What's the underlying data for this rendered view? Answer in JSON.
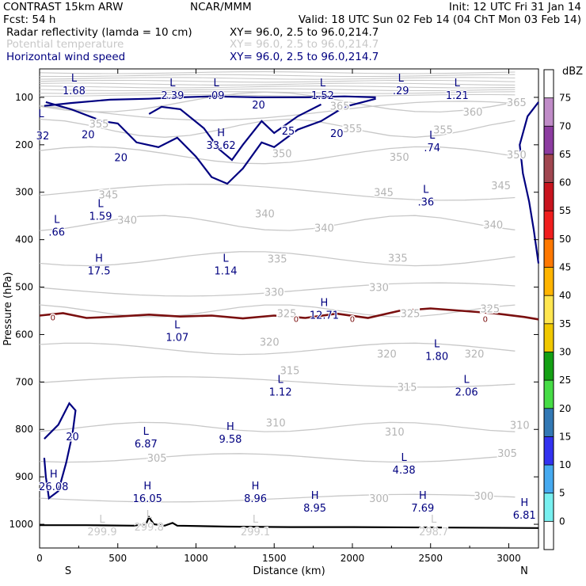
{
  "header": {
    "title": "CONTRAST 15km ARW",
    "forecast": "Fcst:    54 h",
    "source": "NCAR/MMM",
    "init": "Init: 12 UTC Fri 31 Jan 14",
    "valid": "Valid: 18 UTC Sun 02 Feb 14 (04 ChT Mon 03 Feb 14)",
    "fields": [
      {
        "label": "Radar reflectivity (lamda = 10 cm)",
        "coords": "XY=   96.0,  2.5 to   96.0,214.7",
        "color": "#000000"
      },
      {
        "label": "Potential temperature",
        "coords": "XY=   96.0,  2.5 to   96.0,214.7",
        "color": "#c8c8c8"
      },
      {
        "label": "Horizontal wind speed",
        "coords": "XY=   96.0,  2.5 to   96.0,214.7",
        "color": "#000080"
      }
    ]
  },
  "chart_data": {
    "type": "contour cross-section",
    "xlabel": "Distance (km)",
    "ylabel": "Pressure (hPa)",
    "xlim": [
      0,
      3190
    ],
    "ylim": [
      1050,
      40
    ],
    "y_inverted": true,
    "xticks": [
      0,
      500,
      1000,
      1500,
      2000,
      2500,
      3000
    ],
    "yticks": [
      100,
      200,
      300,
      400,
      500,
      600,
      700,
      800,
      900,
      1000
    ],
    "x_end_labels": {
      "left": "S",
      "right": "N"
    },
    "colorbar": {
      "unit": "dBZ",
      "levels": [
        75,
        70,
        65,
        60,
        55,
        50,
        45,
        40,
        35,
        30,
        25,
        20,
        15,
        10,
        5,
        0
      ],
      "colors": [
        "#ffffff",
        "#c08cc8",
        "#8c3ca0",
        "#a04650",
        "#c8141e",
        "#f01e1e",
        "#ff7800",
        "#ffb400",
        "#ffe650",
        "#f0c800",
        "#14a014",
        "#46dc46",
        "#3278b4",
        "#3232f0",
        "#46aaf0",
        "#78f0f0",
        "#ffffff"
      ]
    },
    "theta_labels": [
      {
        "v": "365",
        "x": 1920,
        "p": 118
      },
      {
        "v": "360",
        "x": 2770,
        "p": 130
      },
      {
        "v": "365",
        "x": 3050,
        "p": 110
      },
      {
        "v": "355",
        "x": 2000,
        "p": 165
      },
      {
        "v": "355",
        "x": 2580,
        "p": 168
      },
      {
        "v": "355",
        "x": 380,
        "p": 155
      },
      {
        "v": "350",
        "x": 1550,
        "p": 218
      },
      {
        "v": "350",
        "x": 2300,
        "p": 225
      },
      {
        "v": "350",
        "x": 3050,
        "p": 220
      },
      {
        "v": "345",
        "x": 440,
        "p": 305
      },
      {
        "v": "345",
        "x": 2200,
        "p": 300
      },
      {
        "v": "345",
        "x": 2950,
        "p": 285
      },
      {
        "v": "340",
        "x": 560,
        "p": 358
      },
      {
        "v": "340",
        "x": 1440,
        "p": 345
      },
      {
        "v": "340",
        "x": 1820,
        "p": 375
      },
      {
        "v": "340",
        "x": 2900,
        "p": 368
      },
      {
        "v": "335",
        "x": 1520,
        "p": 440
      },
      {
        "v": "335",
        "x": 2290,
        "p": 438
      },
      {
        "v": "330",
        "x": 1500,
        "p": 510
      },
      {
        "v": "330",
        "x": 2170,
        "p": 500
      },
      {
        "v": "325",
        "x": 1580,
        "p": 555
      },
      {
        "v": "325",
        "x": 2370,
        "p": 555
      },
      {
        "v": "325",
        "x": 2880,
        "p": 545
      },
      {
        "v": "320",
        "x": 1470,
        "p": 615
      },
      {
        "v": "320",
        "x": 2220,
        "p": 640
      },
      {
        "v": "320",
        "x": 2780,
        "p": 640
      },
      {
        "v": "315",
        "x": 1600,
        "p": 675
      },
      {
        "v": "315",
        "x": 2350,
        "p": 710
      },
      {
        "v": "310",
        "x": 1510,
        "p": 785
      },
      {
        "v": "310",
        "x": 2270,
        "p": 805
      },
      {
        "v": "310",
        "x": 3070,
        "p": 790
      },
      {
        "v": "305",
        "x": 750,
        "p": 860
      },
      {
        "v": "305",
        "x": 2990,
        "p": 850
      },
      {
        "v": "300",
        "x": 2170,
        "p": 945
      },
      {
        "v": "300",
        "x": 2840,
        "p": 940
      }
    ],
    "wind_labels": [
      {
        "v": "20",
        "x": 310,
        "p": 178
      },
      {
        "v": "20",
        "x": 520,
        "p": 226
      },
      {
        "v": "20",
        "x": 1400,
        "p": 115
      },
      {
        "v": "25",
        "x": 1590,
        "p": 170
      },
      {
        "v": "20",
        "x": 1900,
        "p": 175
      },
      {
        "v": "20",
        "x": 210,
        "p": 815
      },
      {
        "v": "0",
        "x": 85,
        "p": 562
      },
      {
        "v": "0",
        "x": 1640,
        "p": 565
      },
      {
        "v": "0",
        "x": 2000,
        "p": 565
      },
      {
        "v": "0",
        "x": 2850,
        "p": 565
      }
    ],
    "extrema": [
      {
        "t": "L",
        "v": "1.68",
        "x": 220,
        "p": 80,
        "color": "#000080"
      },
      {
        "t": "L",
        "v": "2.39",
        "x": 850,
        "p": 90,
        "color": "#000080"
      },
      {
        "t": "L",
        "v": ".09",
        "x": 1130,
        "p": 90,
        "color": "#000080"
      },
      {
        "t": "L",
        "v": "1.52",
        "x": 1810,
        "p": 90,
        "color": "#000080"
      },
      {
        "t": "L",
        "v": ".29",
        "x": 2310,
        "p": 80,
        "color": "#000080"
      },
      {
        "t": "L",
        "v": "1.21",
        "x": 2670,
        "p": 90,
        "color": "#000080"
      },
      {
        "t": "L",
        "v": "",
        "x": 10,
        "p": 155,
        "color": "#000080"
      },
      {
        "t": "",
        "v": "32",
        "x": 20,
        "p": 175,
        "color": "#000080"
      },
      {
        "t": "H",
        "v": "33.62",
        "x": 1160,
        "p": 195,
        "color": "#000080"
      },
      {
        "t": "L",
        "v": ".74",
        "x": 2510,
        "p": 200,
        "color": "#000080"
      },
      {
        "t": "L",
        "v": ".36",
        "x": 2470,
        "p": 315,
        "color": "#000080"
      },
      {
        "t": "L",
        "v": "1.59",
        "x": 390,
        "p": 345,
        "color": "#000080"
      },
      {
        "t": "L",
        "v": ".66",
        "x": 110,
        "p": 378,
        "color": "#000080"
      },
      {
        "t": "H",
        "v": "17.5",
        "x": 380,
        "p": 460,
        "color": "#000080"
      },
      {
        "t": "L",
        "v": "1.14",
        "x": 1190,
        "p": 460,
        "color": "#000080"
      },
      {
        "t": "H",
        "v": "12.71",
        "x": 1820,
        "p": 553,
        "color": "#000080"
      },
      {
        "t": "L",
        "v": "1.07",
        "x": 880,
        "p": 600,
        "color": "#000080"
      },
      {
        "t": "L",
        "v": "1.80",
        "x": 2540,
        "p": 640,
        "color": "#000080"
      },
      {
        "t": "L",
        "v": "1.12",
        "x": 1540,
        "p": 715,
        "color": "#000080"
      },
      {
        "t": "L",
        "v": "2.06",
        "x": 2730,
        "p": 715,
        "color": "#000080"
      },
      {
        "t": "L",
        "v": "6.87",
        "x": 680,
        "p": 825,
        "color": "#000080"
      },
      {
        "t": "H",
        "v": "9.58",
        "x": 1220,
        "p": 815,
        "color": "#000080"
      },
      {
        "t": "L",
        "v": "4.38",
        "x": 2330,
        "p": 880,
        "color": "#000080"
      },
      {
        "t": "H",
        "v": "26.08",
        "x": 90,
        "p": 915,
        "color": "#000080"
      },
      {
        "t": "H",
        "v": "16.05",
        "x": 690,
        "p": 940,
        "color": "#000080"
      },
      {
        "t": "H",
        "v": "8.96",
        "x": 1380,
        "p": 940,
        "color": "#000080"
      },
      {
        "t": "H",
        "v": "8.95",
        "x": 1760,
        "p": 960,
        "color": "#000080"
      },
      {
        "t": "H",
        "v": "7.69",
        "x": 2450,
        "p": 960,
        "color": "#000080"
      },
      {
        "t": "H",
        "v": "6.81",
        "x": 3100,
        "p": 975,
        "color": "#000080"
      },
      {
        "t": "L",
        "v": "299.9",
        "x": 400,
        "p": 1010,
        "color": "#c8c8c8"
      },
      {
        "t": "L",
        "v": "299.8",
        "x": 700,
        "p": 1000,
        "color": "#c8c8c8"
      },
      {
        "t": "L",
        "v": "299.1",
        "x": 1380,
        "p": 1010,
        "color": "#c8c8c8"
      },
      {
        "t": "L",
        "v": "298.7",
        "x": 2520,
        "p": 1010,
        "color": "#c8c8c8"
      }
    ],
    "zero_wind_line": [
      [
        0,
        560
      ],
      [
        150,
        555
      ],
      [
        300,
        565
      ],
      [
        500,
        562
      ],
      [
        700,
        558
      ],
      [
        900,
        562
      ],
      [
        1100,
        560
      ],
      [
        1300,
        566
      ],
      [
        1500,
        560
      ],
      [
        1700,
        565
      ],
      [
        1900,
        556
      ],
      [
        2100,
        565
      ],
      [
        2300,
        550
      ],
      [
        2500,
        545
      ],
      [
        2700,
        550
      ],
      [
        2900,
        555
      ],
      [
        3100,
        563
      ],
      [
        3190,
        568
      ]
    ],
    "jet_core_upper": [
      [
        30,
        118
      ],
      [
        200,
        112
      ],
      [
        450,
        105
      ],
      [
        700,
        103
      ],
      [
        900,
        100
      ],
      [
        1100,
        98
      ],
      [
        1400,
        100
      ],
      [
        1700,
        100
      ],
      [
        1950,
        98
      ],
      [
        2150,
        100
      ]
    ],
    "jet_contour_20": [
      [
        40,
        110
      ],
      [
        200,
        125
      ],
      [
        400,
        150
      ],
      [
        500,
        155
      ],
      [
        560,
        175
      ],
      [
        620,
        195
      ],
      [
        760,
        205
      ],
      [
        880,
        185
      ],
      [
        1000,
        225
      ],
      [
        1100,
        268
      ],
      [
        1200,
        282
      ],
      [
        1300,
        250
      ],
      [
        1420,
        195
      ],
      [
        1500,
        205
      ],
      [
        1650,
        168
      ],
      [
        1800,
        150
      ],
      [
        1950,
        120
      ],
      [
        2150,
        103
      ]
    ],
    "jet_contour_25": [
      [
        700,
        135
      ],
      [
        780,
        120
      ],
      [
        900,
        125
      ],
      [
        1050,
        165
      ],
      [
        1150,
        210
      ],
      [
        1230,
        232
      ],
      [
        1300,
        200
      ],
      [
        1420,
        150
      ],
      [
        1500,
        175
      ],
      [
        1650,
        140
      ],
      [
        1800,
        115
      ]
    ],
    "low_jet_20": [
      [
        30,
        820
      ],
      [
        120,
        790
      ],
      [
        190,
        745
      ],
      [
        230,
        760
      ],
      [
        210,
        810
      ],
      [
        170,
        870
      ],
      [
        120,
        930
      ],
      [
        60,
        945
      ],
      [
        40,
        900
      ],
      [
        30,
        860
      ]
    ],
    "right_jet_edge": [
      [
        3190,
        110
      ],
      [
        3120,
        140
      ],
      [
        3070,
        200
      ],
      [
        3090,
        260
      ],
      [
        3130,
        320
      ],
      [
        3160,
        380
      ],
      [
        3190,
        450
      ]
    ],
    "surface": [
      [
        0,
        1002
      ],
      [
        300,
        1002
      ],
      [
        600,
        1003
      ],
      [
        680,
        1000
      ],
      [
        700,
        985
      ],
      [
        730,
        1000
      ],
      [
        800,
        1003
      ],
      [
        850,
        997
      ],
      [
        880,
        1003
      ],
      [
        1200,
        1005
      ],
      [
        1600,
        1006
      ],
      [
        2000,
        1006
      ],
      [
        2600,
        1007
      ],
      [
        3190,
        1008
      ]
    ]
  }
}
